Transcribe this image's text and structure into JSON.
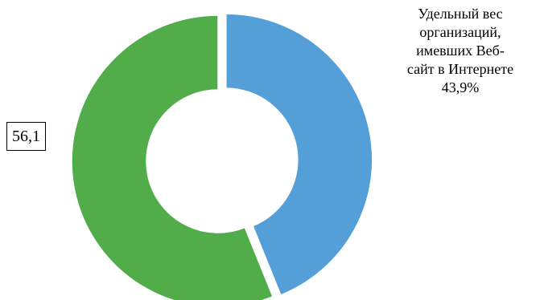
{
  "chart_data": {
    "type": "pie",
    "variant": "donut",
    "slices": [
      {
        "value": 43.9,
        "color": "#559FD8",
        "label_lines": [
          "Удельный вес",
          "организаций,",
          "имевших Веб-",
          "сайт в Интернете",
          "43,9%"
        ]
      },
      {
        "value": 56.1,
        "color": "#51AD4A",
        "label_lines": [
          "56,1"
        ]
      }
    ],
    "start_angle_deg": 0,
    "exploded_slice": 0,
    "legend": "none"
  }
}
